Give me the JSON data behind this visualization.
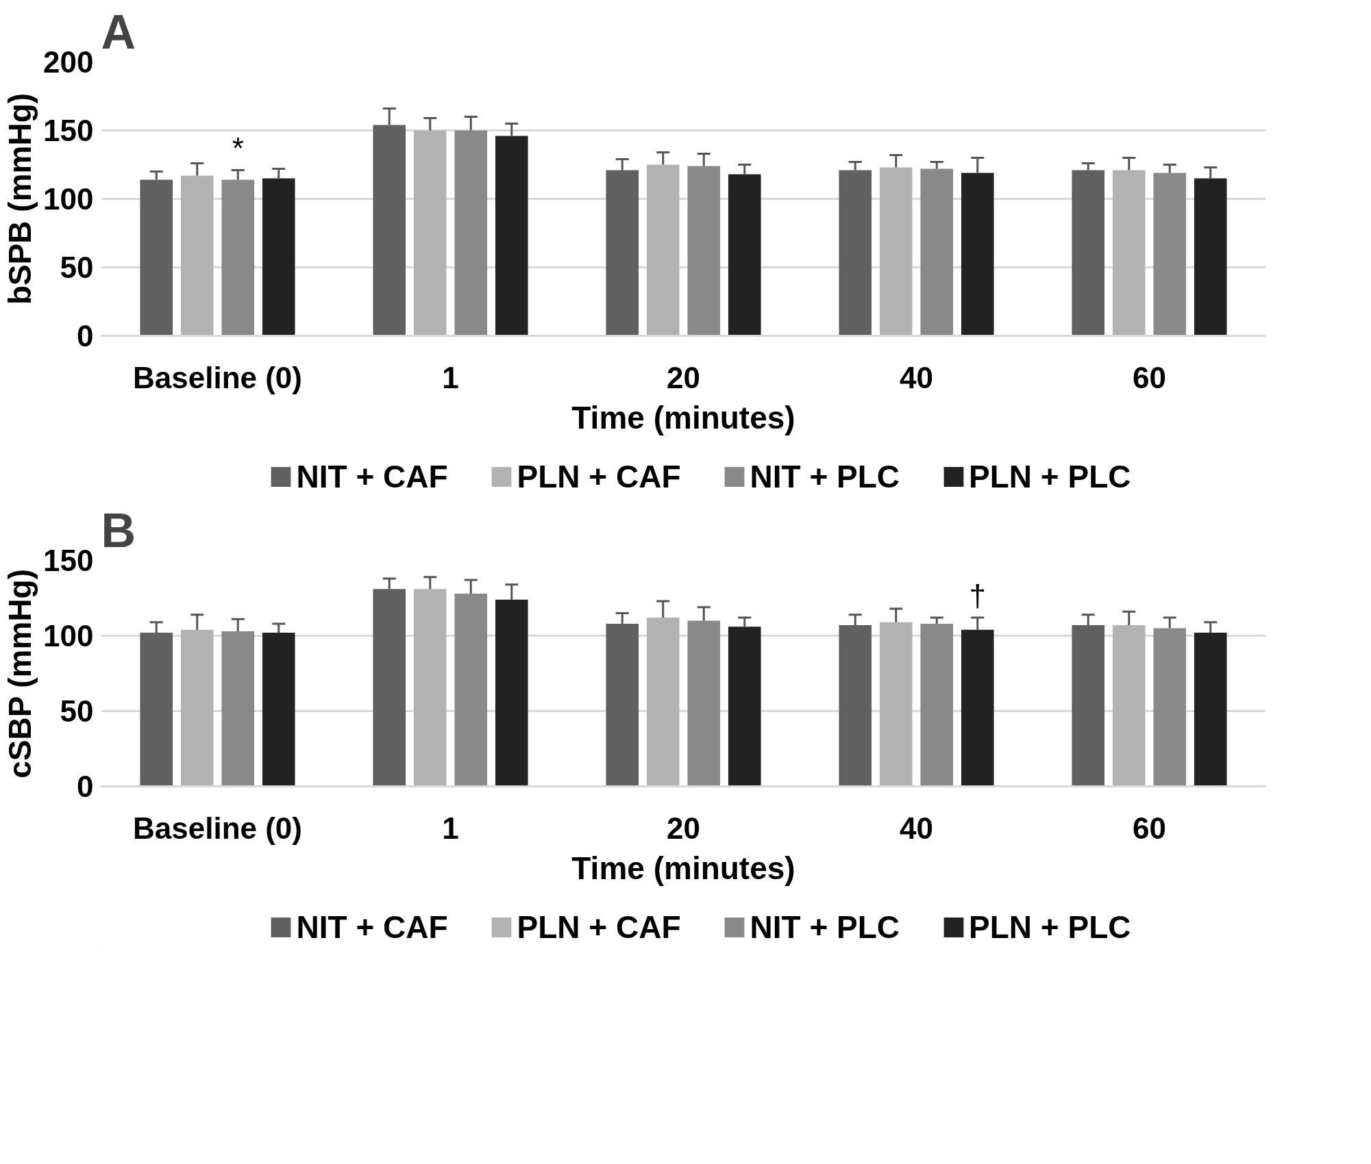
{
  "chart_data": [
    {
      "type": "bar",
      "title": "A",
      "xlabel": "Time (minutes)",
      "ylabel": "bSPB (mmHg)",
      "categories": [
        "Baseline (0)",
        "1",
        "20",
        "40",
        "60"
      ],
      "ylim": [
        0,
        200
      ],
      "yticks": [
        0,
        50,
        100,
        150,
        200
      ],
      "grid": "y",
      "legend": "bottom",
      "annotations": [
        "*"
      ],
      "series": [
        {
          "name": "NIT + CAF",
          "color": "#606060",
          "values": [
            114,
            154,
            121,
            121,
            121
          ],
          "errors": [
            [
              114,
              120
            ],
            [
              154,
              166
            ],
            [
              121,
              129
            ],
            [
              121,
              127
            ],
            [
              121,
              126
            ]
          ]
        },
        {
          "name": "PLN + CAF",
          "color": "#b2b2b2",
          "values": [
            117,
            150,
            125,
            123,
            121
          ],
          "errors": [
            [
              117,
              126
            ],
            [
              150,
              159
            ],
            [
              125,
              134
            ],
            [
              123,
              132
            ],
            [
              121,
              130
            ]
          ]
        },
        {
          "name": "NIT + PLC",
          "color": "#898989",
          "values": [
            114,
            150,
            124,
            122,
            119
          ],
          "errors": [
            [
              114,
              121
            ],
            [
              150,
              160
            ],
            [
              124,
              133
            ],
            [
              122,
              127
            ],
            [
              119,
              125
            ]
          ]
        },
        {
          "name": "PLN + PLC",
          "color": "#222222",
          "values": [
            115,
            146,
            118,
            119,
            115
          ],
          "errors": [
            [
              115,
              122
            ],
            [
              146,
              155
            ],
            [
              118,
              125
            ],
            [
              119,
              130
            ],
            [
              115,
              123
            ]
          ]
        }
      ]
    },
    {
      "type": "bar",
      "title": "B",
      "xlabel": "Time (minutes)",
      "ylabel": "cSBP (mmHg)",
      "categories": [
        "Baseline (0)",
        "1",
        "20",
        "40",
        "60"
      ],
      "ylim": [
        0,
        150
      ],
      "yticks": [
        0,
        50,
        100,
        150
      ],
      "grid": "y",
      "legend": "bottom",
      "annotations": [
        "†"
      ],
      "series": [
        {
          "name": "NIT + CAF",
          "color": "#606060",
          "values": [
            102,
            131,
            108,
            107,
            107
          ],
          "errors": [
            [
              102,
              109
            ],
            [
              131,
              138
            ],
            [
              108,
              115
            ],
            [
              107,
              114
            ],
            [
              107,
              114
            ]
          ]
        },
        {
          "name": "PLN + CAF",
          "color": "#b2b2b2",
          "values": [
            104,
            131,
            112,
            109,
            107
          ],
          "errors": [
            [
              104,
              114
            ],
            [
              131,
              139
            ],
            [
              112,
              123
            ],
            [
              109,
              118
            ],
            [
              107,
              116
            ]
          ]
        },
        {
          "name": "NIT + PLC",
          "color": "#898989",
          "values": [
            103,
            128,
            110,
            108,
            105
          ],
          "errors": [
            [
              103,
              111
            ],
            [
              128,
              137
            ],
            [
              110,
              119
            ],
            [
              108,
              112
            ],
            [
              105,
              112
            ]
          ]
        },
        {
          "name": "PLN + PLC",
          "color": "#222222",
          "values": [
            102,
            124,
            106,
            104,
            102
          ],
          "errors": [
            [
              102,
              108
            ],
            [
              124,
              134
            ],
            [
              106,
              112
            ],
            [
              104,
              112
            ],
            [
              102,
              109
            ]
          ]
        }
      ]
    }
  ]
}
